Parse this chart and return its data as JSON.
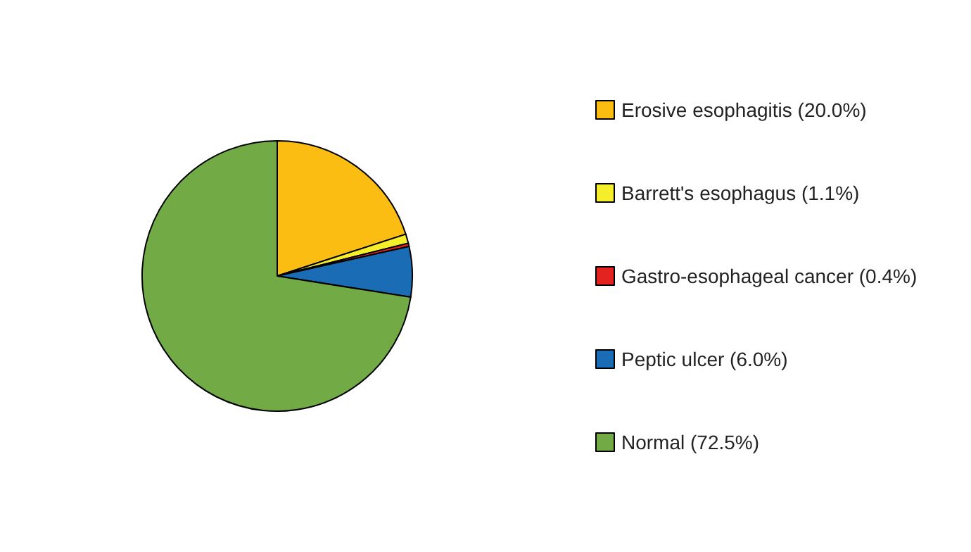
{
  "chart_data": {
    "type": "pie",
    "categories": [
      "Erosive esophagitis (20.0%)",
      "Barrett's esophagus (1.1%)",
      "Gastro-esophageal cancer (0.4%)",
      "Peptic ulcer (6.0%)",
      "Normal (72.5%)"
    ],
    "values": [
      20.0,
      1.1,
      0.4,
      6.0,
      72.5
    ],
    "colors": [
      "#fbbd12",
      "#f5ee2a",
      "#e3231f",
      "#1a6db5",
      "#72ab46"
    ],
    "legend": "right"
  }
}
